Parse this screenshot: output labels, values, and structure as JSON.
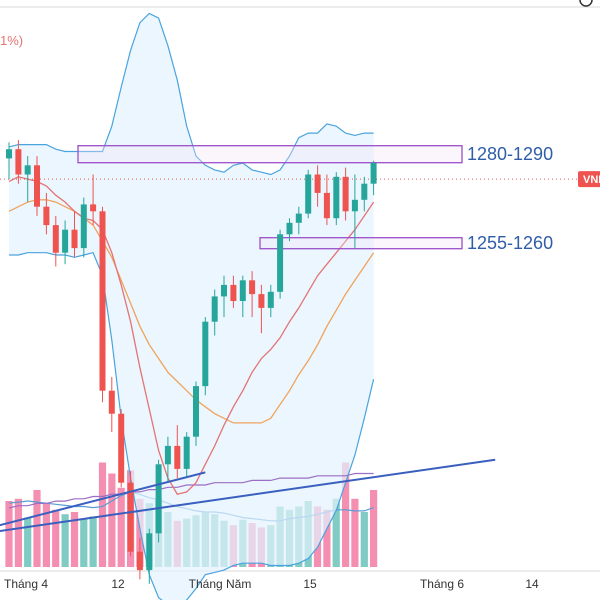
{
  "chart_data": {
    "type": "candlestick",
    "title": "",
    "header_fragment": "1%)",
    "price_tag_label": "VNI",
    "zones": [
      {
        "label": "1280-1290",
        "low": 1280,
        "high": 1290
      },
      {
        "label": "1255-1260",
        "low": 1255,
        "high": 1260
      }
    ],
    "x_ticks": [
      {
        "label": "Tháng 4",
        "index": 0
      },
      {
        "label": "12",
        "index": 9
      },
      {
        "label": "Tháng Năm",
        "index": 17
      },
      {
        "label": "15",
        "index": 25
      },
      {
        "label": "Tháng 6",
        "index": 34
      },
      {
        "label": "14",
        "index": 43
      }
    ],
    "candles": [
      {
        "o": 1291,
        "h": 1298,
        "l": 1282,
        "c": 1295
      },
      {
        "o": 1295,
        "h": 1299,
        "l": 1280,
        "c": 1284
      },
      {
        "o": 1284,
        "h": 1292,
        "l": 1272,
        "c": 1288
      },
      {
        "o": 1288,
        "h": 1292,
        "l": 1266,
        "c": 1270
      },
      {
        "o": 1270,
        "h": 1276,
        "l": 1258,
        "c": 1262
      },
      {
        "o": 1262,
        "h": 1266,
        "l": 1244,
        "c": 1250
      },
      {
        "o": 1250,
        "h": 1264,
        "l": 1245,
        "c": 1260
      },
      {
        "o": 1260,
        "h": 1268,
        "l": 1248,
        "c": 1252
      },
      {
        "o": 1252,
        "h": 1274,
        "l": 1248,
        "c": 1271
      },
      {
        "o": 1271,
        "h": 1284,
        "l": 1262,
        "c": 1268
      },
      {
        "o": 1268,
        "h": 1270,
        "l": 1185,
        "c": 1190
      },
      {
        "o": 1190,
        "h": 1196,
        "l": 1172,
        "c": 1180
      },
      {
        "o": 1180,
        "h": 1182,
        "l": 1148,
        "c": 1150
      },
      {
        "o": 1150,
        "h": 1155,
        "l": 1118,
        "c": 1120
      },
      {
        "o": 1120,
        "h": 1126,
        "l": 1108,
        "c": 1112
      },
      {
        "o": 1112,
        "h": 1130,
        "l": 1106,
        "c": 1128
      },
      {
        "o": 1128,
        "h": 1160,
        "l": 1124,
        "c": 1158
      },
      {
        "o": 1158,
        "h": 1170,
        "l": 1150,
        "c": 1166
      },
      {
        "o": 1166,
        "h": 1175,
        "l": 1152,
        "c": 1156
      },
      {
        "o": 1156,
        "h": 1172,
        "l": 1152,
        "c": 1170
      },
      {
        "o": 1170,
        "h": 1194,
        "l": 1166,
        "c": 1192
      },
      {
        "o": 1192,
        "h": 1222,
        "l": 1188,
        "c": 1220
      },
      {
        "o": 1220,
        "h": 1234,
        "l": 1214,
        "c": 1231
      },
      {
        "o": 1231,
        "h": 1240,
        "l": 1222,
        "c": 1236
      },
      {
        "o": 1236,
        "h": 1240,
        "l": 1226,
        "c": 1229
      },
      {
        "o": 1229,
        "h": 1240,
        "l": 1222,
        "c": 1238
      },
      {
        "o": 1238,
        "h": 1242,
        "l": 1222,
        "c": 1232
      },
      {
        "o": 1232,
        "h": 1236,
        "l": 1215,
        "c": 1226
      },
      {
        "o": 1226,
        "h": 1236,
        "l": 1222,
        "c": 1233
      },
      {
        "o": 1233,
        "h": 1260,
        "l": 1230,
        "c": 1258
      },
      {
        "o": 1258,
        "h": 1265,
        "l": 1255,
        "c": 1263
      },
      {
        "o": 1263,
        "h": 1270,
        "l": 1258,
        "c": 1267
      },
      {
        "o": 1267,
        "h": 1286,
        "l": 1265,
        "c": 1284
      },
      {
        "o": 1284,
        "h": 1288,
        "l": 1270,
        "c": 1276
      },
      {
        "o": 1276,
        "h": 1284,
        "l": 1262,
        "c": 1265
      },
      {
        "o": 1265,
        "h": 1285,
        "l": 1262,
        "c": 1283
      },
      {
        "o": 1283,
        "h": 1287,
        "l": 1264,
        "c": 1268
      },
      {
        "o": 1268,
        "h": 1284,
        "l": 1252,
        "c": 1273
      },
      {
        "o": 1273,
        "h": 1283,
        "l": 1268,
        "c": 1280
      },
      {
        "o": 1280,
        "h": 1290,
        "l": 1275,
        "c": 1289
      }
    ],
    "volume": [
      {
        "v": 60,
        "dir": "down"
      },
      {
        "v": 62,
        "dir": "down"
      },
      {
        "v": 45,
        "dir": "up"
      },
      {
        "v": 70,
        "dir": "down"
      },
      {
        "v": 58,
        "dir": "down"
      },
      {
        "v": 52,
        "dir": "down"
      },
      {
        "v": 48,
        "dir": "up"
      },
      {
        "v": 50,
        "dir": "down"
      },
      {
        "v": 44,
        "dir": "up"
      },
      {
        "v": 46,
        "dir": "up"
      },
      {
        "v": 95,
        "dir": "down"
      },
      {
        "v": 85,
        "dir": "down"
      },
      {
        "v": 72,
        "dir": "down"
      },
      {
        "v": 88,
        "dir": "down"
      },
      {
        "v": 62,
        "dir": "down"
      },
      {
        "v": 58,
        "dir": "up"
      },
      {
        "v": 62,
        "dir": "up"
      },
      {
        "v": 50,
        "dir": "up"
      },
      {
        "v": 42,
        "dir": "down"
      },
      {
        "v": 44,
        "dir": "up"
      },
      {
        "v": 47,
        "dir": "up"
      },
      {
        "v": 50,
        "dir": "up"
      },
      {
        "v": 48,
        "dir": "up"
      },
      {
        "v": 42,
        "dir": "up"
      },
      {
        "v": 38,
        "dir": "down"
      },
      {
        "v": 43,
        "dir": "up"
      },
      {
        "v": 40,
        "dir": "down"
      },
      {
        "v": 36,
        "dir": "down"
      },
      {
        "v": 38,
        "dir": "up"
      },
      {
        "v": 55,
        "dir": "up"
      },
      {
        "v": 52,
        "dir": "up"
      },
      {
        "v": 55,
        "dir": "up"
      },
      {
        "v": 60,
        "dir": "up"
      },
      {
        "v": 55,
        "dir": "down"
      },
      {
        "v": 52,
        "dir": "down"
      },
      {
        "v": 62,
        "dir": "up"
      },
      {
        "v": 95,
        "dir": "down"
      },
      {
        "v": 62,
        "dir": "down"
      },
      {
        "v": 50,
        "dir": "up"
      },
      {
        "v": 70,
        "dir": "down"
      }
    ],
    "bb_upper": [
      1296,
      1297,
      1297,
      1297,
      1297,
      1295,
      1294,
      1294,
      1294,
      1294,
      1294,
      1305,
      1322,
      1338,
      1350,
      1354,
      1352,
      1340,
      1325,
      1305,
      1292,
      1288,
      1286,
      1285,
      1288,
      1289,
      1286,
      1285,
      1284,
      1286,
      1292,
      1300,
      1302,
      1302,
      1306,
      1305,
      1302,
      1301,
      1302,
      1302
    ],
    "bb_lower": [
      1249,
      1249,
      1250,
      1250,
      1250,
      1249,
      1249,
      1248,
      1249,
      1250,
      1240,
      1212,
      1178,
      1152,
      1130,
      1110,
      1100,
      1097,
      1097,
      1099,
      1104,
      1110,
      1111,
      1112,
      1114,
      1115,
      1115,
      1115,
      1114,
      1114,
      1114,
      1115,
      1117,
      1122,
      1130,
      1138,
      1150,
      1162,
      1178,
      1195
    ],
    "ma_fast": [
      1281,
      1283,
      1282,
      1281,
      1279,
      1275,
      1272,
      1268,
      1265,
      1264,
      1260,
      1250,
      1236,
      1220,
      1200,
      1182,
      1164,
      1152,
      1145,
      1146,
      1150,
      1158,
      1166,
      1175,
      1183,
      1190,
      1198,
      1204,
      1208,
      1213,
      1220,
      1226,
      1233,
      1240,
      1245,
      1250,
      1255,
      1260,
      1266,
      1272
    ],
    "ma_slow": [
      1268,
      1270,
      1272,
      1273,
      1273,
      1272,
      1270,
      1268,
      1265,
      1262,
      1255,
      1248,
      1238,
      1228,
      1218,
      1210,
      1204,
      1198,
      1194,
      1190,
      1186,
      1183,
      1180,
      1178,
      1176,
      1176,
      1176,
      1176,
      1178,
      1184,
      1190,
      1197,
      1203,
      1210,
      1218,
      1225,
      1232,
      1238,
      1244,
      1250
    ],
    "ma_long": [
      1139,
      1140,
      1140,
      1141,
      1141,
      1142,
      1142,
      1143,
      1143,
      1144,
      1144,
      1145,
      1145,
      1146,
      1146,
      1147,
      1147,
      1148,
      1148,
      1149,
      1149,
      1149,
      1150,
      1150,
      1150,
      1150,
      1151,
      1151,
      1151,
      1152,
      1152,
      1152,
      1152,
      1153,
      1153,
      1153,
      1153,
      1154,
      1154,
      1154
    ],
    "vol_ma": [
      58,
      59,
      60,
      59,
      58,
      57,
      56,
      55,
      55,
      54,
      55,
      60,
      65,
      68,
      66,
      63,
      61,
      58,
      55,
      53,
      51,
      50,
      50,
      49,
      47,
      45,
      44,
      43,
      42,
      42,
      44,
      45,
      46,
      48,
      50,
      52,
      52,
      51,
      51,
      54
    ],
    "trendline": {
      "from": {
        "index": -1,
        "price": 1129
      },
      "to": {
        "index": 52,
        "price": 1160
      }
    },
    "vol_trendline": {
      "from": {
        "index": -1,
        "vol": 38
      },
      "to": {
        "index": 21,
        "vol": 86
      }
    },
    "colors": {
      "up": "#26a69a",
      "down": "#ef5350",
      "vol_up": "#80cbc4",
      "vol_down": "#f48fb1",
      "bb": "#4aa3df",
      "bb_fill": "#e3f2fd",
      "ma_fast": "#e57373",
      "ma_slow": "#f0a35c",
      "ma_long": "#9c6ec4",
      "vol_ma": "#5b9bd5",
      "trend": "#3a5fbf",
      "zone": "#9b4fc9",
      "zone_fill": "#f3e5f5",
      "label": "#2f5da8",
      "price_tag": "#ef5350"
    }
  }
}
